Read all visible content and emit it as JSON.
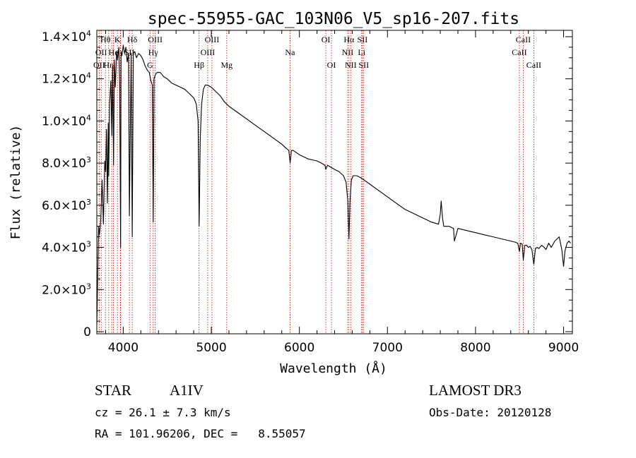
{
  "chart_data": {
    "type": "line",
    "title": "spec-55955-GAC_103N06_V5_sp16-207.fits",
    "xlabel": "Wavelength (Å)",
    "ylabel": "Flux (relative)",
    "xlim": [
      3700,
      9100
    ],
    "ylim": [
      -100,
      14300
    ],
    "x_ticks": [
      4000,
      5000,
      6000,
      7000,
      8000,
      9000
    ],
    "x_tick_labels": [
      "4000",
      "5000",
      "6000",
      "7000",
      "8000",
      "9000"
    ],
    "y_ticks": [
      {
        "value": 0,
        "mantissa": "0",
        "exp": ""
      },
      {
        "value": 2000,
        "mantissa": "2.0×10",
        "exp": "3"
      },
      {
        "value": 4000,
        "mantissa": "4.0×10",
        "exp": "3"
      },
      {
        "value": 6000,
        "mantissa": "6.0×10",
        "exp": "3"
      },
      {
        "value": 8000,
        "mantissa": "8.0×10",
        "exp": "3"
      },
      {
        "value": 10000,
        "mantissa": "1.0×10",
        "exp": "4"
      },
      {
        "value": 12000,
        "mantissa": "1.2×10",
        "exp": "4"
      },
      {
        "value": 14000,
        "mantissa": "1.4×10",
        "exp": "4"
      }
    ],
    "series": [
      {
        "name": "flux",
        "x": [
          3700,
          3710,
          3720,
          3730,
          3745,
          3760,
          3775,
          3790,
          3800,
          3810,
          3820,
          3830,
          3835,
          3845,
          3860,
          3870,
          3880,
          3890,
          3900,
          3910,
          3925,
          3935,
          3950,
          3960,
          3970,
          3975,
          3985,
          4000,
          4015,
          4030,
          4045,
          4060,
          4070,
          4090,
          4102,
          4115,
          4130,
          4150,
          4175,
          4200,
          4225,
          4250,
          4275,
          4295,
          4315,
          4330,
          4340,
          4350,
          4365,
          4385,
          4420,
          4460,
          4500,
          4550,
          4600,
          4650,
          4700,
          4750,
          4800,
          4830,
          4850,
          4862,
          4875,
          4890,
          4910,
          4930,
          4960,
          5000,
          5050,
          5100,
          5150,
          5200,
          5300,
          5400,
          5500,
          5600,
          5700,
          5800,
          5850,
          5880,
          5895,
          5910,
          5930,
          6000,
          6100,
          6200,
          6250,
          6290,
          6300,
          6320,
          6400,
          6450,
          6500,
          6530,
          6550,
          6563,
          6575,
          6590,
          6610,
          6650,
          6700,
          6800,
          6900,
          7000,
          7100,
          7200,
          7300,
          7400,
          7500,
          7580,
          7600,
          7610,
          7625,
          7640,
          7700,
          7750,
          7760,
          7800,
          7900,
          8000,
          8100,
          8200,
          8300,
          8400,
          8450,
          8480,
          8498,
          8510,
          8530,
          8542,
          8560,
          8580,
          8600,
          8620,
          8640,
          8662,
          8680,
          8700,
          8720,
          8750,
          8780,
          8800,
          8830,
          8860,
          8900,
          8950,
          8980,
          9000,
          9015,
          9025,
          9040,
          9060,
          9080
        ],
        "y": [
          300,
          2500,
          5000,
          4600,
          5300,
          7200,
          5100,
          8100,
          7600,
          9600,
          6100,
          9900,
          7400,
          10800,
          11900,
          9300,
          12600,
          7900,
          12900,
          11600,
          13300,
          12900,
          13500,
          11700,
          4000,
          13300,
          13100,
          13600,
          13200,
          13500,
          12800,
          13200,
          5500,
          13200,
          4500,
          13200,
          13300,
          13000,
          13200,
          13100,
          12900,
          12600,
          12400,
          12300,
          11900,
          11700,
          5200,
          12000,
          12200,
          12300,
          12300,
          12100,
          12000,
          11800,
          11700,
          11600,
          11500,
          11300,
          11100,
          10800,
          10000,
          5000,
          9200,
          10800,
          11500,
          11700,
          11700,
          11600,
          11400,
          11200,
          10900,
          10700,
          10400,
          10100,
          9800,
          9500,
          9200,
          8900,
          8700,
          8600,
          8000,
          8600,
          8600,
          8400,
          8200,
          8100,
          8000,
          7900,
          7700,
          7900,
          7700,
          7600,
          7400,
          7100,
          6200,
          4400,
          6200,
          7200,
          7400,
          7400,
          7300,
          7000,
          6700,
          6400,
          6100,
          5800,
          5600,
          5400,
          5200,
          5100,
          5600,
          6200,
          5400,
          5000,
          5000,
          4900,
          4300,
          4900,
          4800,
          4700,
          4600,
          4500,
          4400,
          4300,
          4250,
          4200,
          3800,
          4200,
          4150,
          3400,
          4100,
          4100,
          4000,
          4050,
          3900,
          3200,
          3950,
          4000,
          3950,
          4100,
          4000,
          3900,
          4200,
          4000,
          4300,
          4500,
          3900,
          3100,
          3800,
          4000,
          4200,
          4300,
          4200
        ]
      }
    ],
    "line_markers": [
      {
        "wl": 3727,
        "label": "OII",
        "row": 2
      },
      {
        "wl": 3750,
        "label": "OII",
        "row": 1
      },
      {
        "wl": 3798,
        "label": "Hθ",
        "row": 0
      },
      {
        "wl": 3835,
        "label": "Hη",
        "row": 2
      },
      {
        "wl": 3869,
        "label": "",
        "row": -1
      },
      {
        "wl": 3889,
        "label": "He",
        "row": 1
      },
      {
        "wl": 3934,
        "label": "K",
        "row": 0
      },
      {
        "wl": 3968,
        "label": "",
        "row": -1
      },
      {
        "wl": 3970,
        "label": "",
        "row": -1
      },
      {
        "wl": 4070,
        "label": "SII",
        "row": 1
      },
      {
        "wl": 4102,
        "label": "Hδ",
        "row": 0
      },
      {
        "wl": 4304,
        "label": "G",
        "row": 2
      },
      {
        "wl": 4340,
        "label": "Hγ",
        "row": 1
      },
      {
        "wl": 4363,
        "label": "OIII",
        "row": 0
      },
      {
        "wl": 4861,
        "label": "Hβ",
        "row": 2
      },
      {
        "wl": 4959,
        "label": "OIII",
        "row": 1
      },
      {
        "wl": 5007,
        "label": "OIII",
        "row": 0
      },
      {
        "wl": 5175,
        "label": "Mg",
        "row": 2
      },
      {
        "wl": 5894,
        "label": "Na",
        "row": 1
      },
      {
        "wl": 6300,
        "label": "OI",
        "row": 0
      },
      {
        "wl": 6364,
        "label": "OI",
        "row": 2
      },
      {
        "wl": 6548,
        "label": "NII",
        "row": 1
      },
      {
        "wl": 6563,
        "label": "Hα",
        "row": 0
      },
      {
        "wl": 6583,
        "label": "NII",
        "row": 2
      },
      {
        "wl": 6707,
        "label": "Li",
        "row": 1
      },
      {
        "wl": 6716,
        "label": "SII",
        "row": 0
      },
      {
        "wl": 6731,
        "label": "SII",
        "row": 2
      },
      {
        "wl": 8498,
        "label": "CaII",
        "row": 1
      },
      {
        "wl": 8542,
        "label": "CaII",
        "row": 0
      },
      {
        "wl": 8662,
        "label": "CaII",
        "row": 2
      }
    ],
    "line_color": "#000000",
    "marker_color": "#cc0000",
    "grid": false
  },
  "footer": {
    "object_class": "STAR",
    "subclass": "A1IV",
    "survey": "LAMOST DR3",
    "redshift_text": "cz = 26.1 ± 7.3 km/s",
    "obs_date_text": "Obs-Date: 20120128",
    "coords_text": "RA = 101.96206, DEC =   8.55057"
  }
}
